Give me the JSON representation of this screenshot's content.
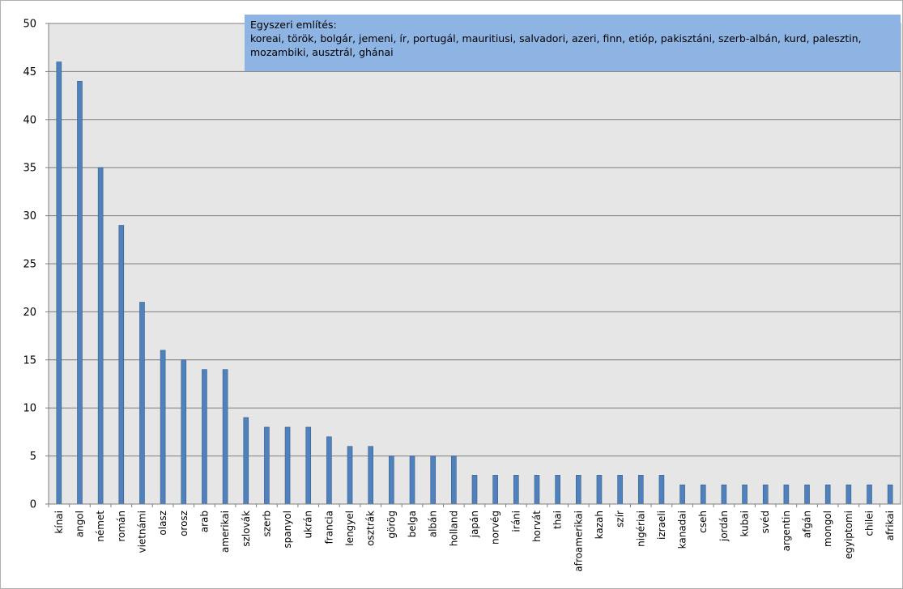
{
  "chart_data": {
    "type": "bar",
    "categories": [
      "kínai",
      "angol",
      "német",
      "román",
      "vietnámi",
      "olasz",
      "orosz",
      "arab",
      "amerikai",
      "szlovák",
      "szerb",
      "spanyol",
      "ukrán",
      "francia",
      "lengyel",
      "osztrák",
      "görög",
      "belga",
      "albán",
      "holland",
      "japán",
      "norvég",
      "iráni",
      "horvát",
      "thai",
      "afroamerikai",
      "kazah",
      "szír",
      "nigériai",
      "izraeli",
      "kanadai",
      "cseh",
      "jordán",
      "kubai",
      "svéd",
      "argentin",
      "afgán",
      "mongol",
      "egyiptomi",
      "chilei",
      "afrikai"
    ],
    "values": [
      46,
      44,
      35,
      29,
      21,
      16,
      15,
      14,
      14,
      9,
      8,
      8,
      8,
      7,
      6,
      6,
      5,
      5,
      5,
      5,
      3,
      3,
      3,
      3,
      3,
      3,
      3,
      3,
      3,
      3,
      2,
      2,
      2,
      2,
      2,
      2,
      2,
      2,
      2,
      2,
      2
    ],
    "yticks": [
      "0",
      "5",
      "10",
      "15",
      "20",
      "25",
      "30",
      "35",
      "40",
      "45",
      "50"
    ],
    "ylim": [
      0,
      50
    ],
    "grid": true,
    "legend": "none",
    "annotation": {
      "title": "Egyszeri említés:",
      "text": "koreai, török, bolgár, jemeni, ír, portugál, mauritiusi, salvadori, azeri, finn, etióp, pakisztáni, szerb-albán, kurd, palesztin, mozambiki,  ausztrál, ghánai"
    },
    "colors": {
      "bar": "#4f81bd",
      "bar_edge": "#385d8a",
      "plot_bg": "#e6e6e6",
      "grid": "#7f7f7f",
      "annotation_bg": "#8eb4e3"
    }
  }
}
